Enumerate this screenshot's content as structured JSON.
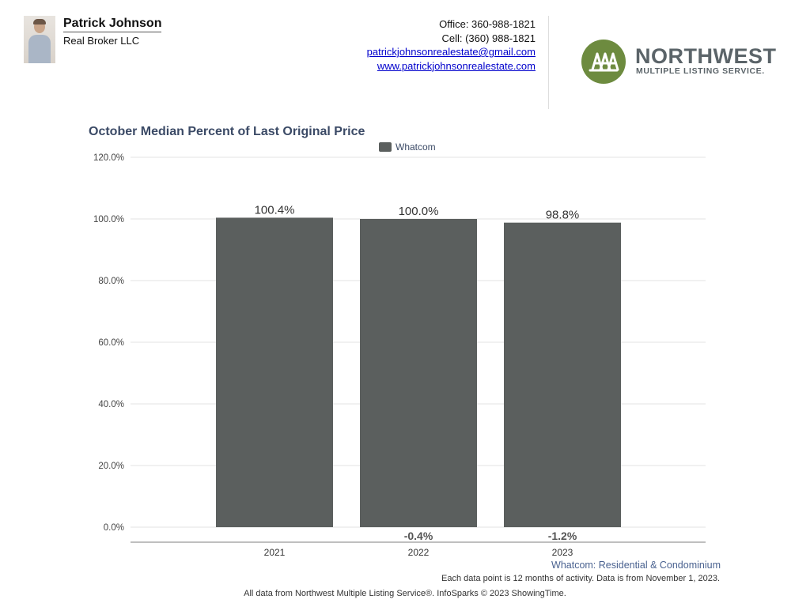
{
  "agent": {
    "name": "Patrick Johnson",
    "company": "Real Broker LLC",
    "office": "Office: 360-988-1821",
    "cell": "Cell: (360) 988-1821",
    "email": "patrickjohnsonrealestate@gmail.com",
    "website": "www.patrickjohnsonrealestate.com"
  },
  "logo": {
    "word": "NORTHWEST",
    "sub": "MULTIPLE LISTING SERVICE.",
    "color": "#6d8b3f"
  },
  "chart_data": {
    "type": "bar",
    "title": "October Median Percent of Last Original Price",
    "xlabel": "",
    "ylabel": "",
    "categories": [
      "2021",
      "2022",
      "2023"
    ],
    "series": [
      {
        "name": "Whatcom",
        "values": [
          100.4,
          100.0,
          98.8
        ],
        "color": "#5b5f5e"
      }
    ],
    "value_labels": [
      "100.4%",
      "100.0%",
      "98.8%"
    ],
    "change_labels": [
      "",
      "-0.4%",
      "-1.2%"
    ],
    "ylim": [
      0,
      120
    ],
    "yticks": [
      "0.0%",
      "20.0%",
      "40.0%",
      "60.0%",
      "80.0%",
      "100.0%",
      "120.0%"
    ],
    "ytick_values": [
      0,
      20,
      40,
      60,
      80,
      100,
      120
    ],
    "grid": true,
    "legend_position": "top-center"
  },
  "footer": {
    "region": "Whatcom: Residential & Condominium",
    "note": "Each data point is 12 months of activity. Data is from November 1, 2023.",
    "source": "All data from Northwest Multiple Listing Service®. InfoSparks © 2023 ShowingTime."
  }
}
